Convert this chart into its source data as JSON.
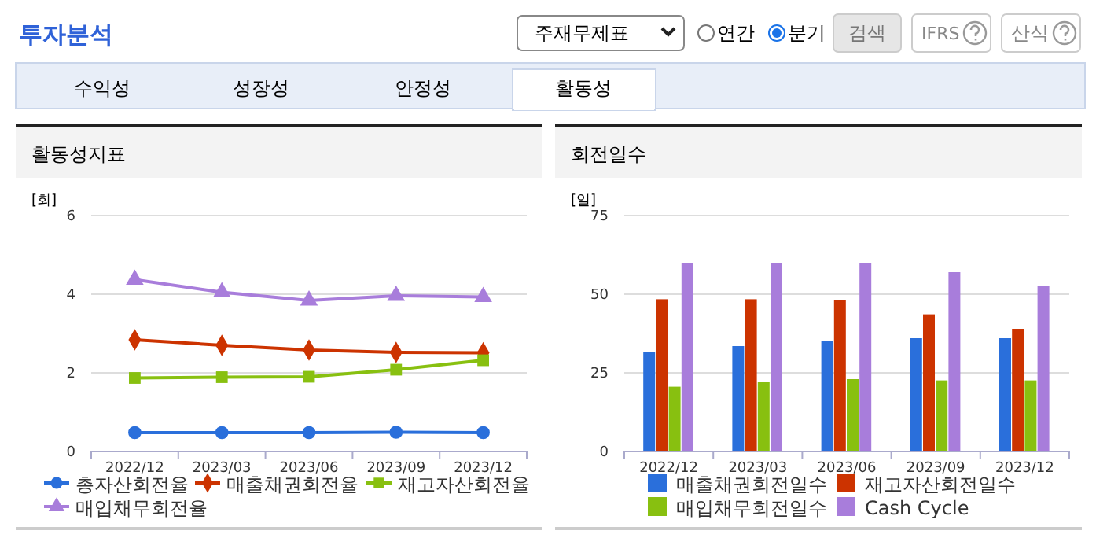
{
  "chart_data": [
    {
      "type": "other",
      "title": "투자분석",
      "annotations": [
        "주재무제표",
        "연간",
        "분기",
        "검색",
        "IFRS",
        "산식",
        "수익성",
        "성장성",
        "안정성",
        "활동성"
      ]
    },
    {
      "type": "line",
      "title": "활동성지표",
      "ylabel": "[회]",
      "categories": [
        "2022/12",
        "2023/03",
        "2023/06",
        "2023/09",
        "2023/12"
      ],
      "ylim": [
        0,
        6
      ],
      "yticks": [
        0,
        2,
        4,
        6
      ],
      "grid": "y",
      "legend": "bottom",
      "series": [
        {
          "name": "총자산회전율",
          "color": "#2a6fdb",
          "marker": "circle",
          "values": [
            0.48,
            0.48,
            0.48,
            0.49,
            0.48
          ]
        },
        {
          "name": "매출채권회전율",
          "color": "#cc3300",
          "marker": "diamond",
          "values": [
            2.84,
            2.7,
            2.58,
            2.52,
            2.51
          ]
        },
        {
          "name": "재고자산회전율",
          "color": "#88c010",
          "marker": "square",
          "values": [
            1.87,
            1.89,
            1.9,
            2.08,
            2.32
          ]
        },
        {
          "name": "매입채무회전율",
          "color": "#a87ddb",
          "marker": "triangle",
          "values": [
            4.37,
            4.05,
            3.84,
            3.96,
            3.93
          ]
        }
      ]
    },
    {
      "type": "bar",
      "title": "회전일수",
      "ylabel": "[일]",
      "categories": [
        "2022/12",
        "2023/03",
        "2023/06",
        "2023/09",
        "2023/12"
      ],
      "ylim": [
        0,
        75
      ],
      "yticks": [
        0,
        25,
        50,
        75
      ],
      "grid": "y",
      "legend": "bottom",
      "series": [
        {
          "name": "매출채권회전일수",
          "color": "#2a6fdb",
          "values": [
            31.5,
            33.5,
            35,
            36,
            36
          ]
        },
        {
          "name": "재고자산회전일수",
          "color": "#cc3300",
          "values": [
            48.4,
            48.4,
            48.1,
            43.6,
            39
          ]
        },
        {
          "name": "매입채무회전일수",
          "color": "#88c010",
          "values": [
            20.6,
            22,
            23,
            22.6,
            22.6
          ]
        },
        {
          "name": "Cash Cycle",
          "color": "#a87ddb",
          "values": [
            60,
            60,
            60,
            57,
            52.6
          ]
        }
      ]
    }
  ]
}
